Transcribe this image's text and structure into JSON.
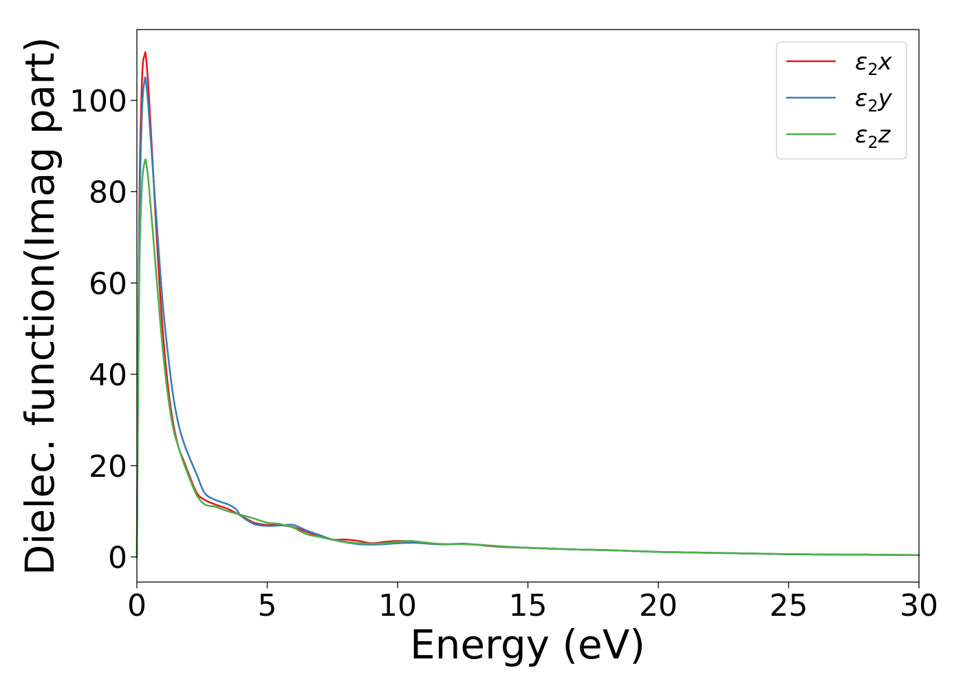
{
  "chart_data": {
    "type": "line",
    "title": "",
    "xlabel": "Energy (eV)",
    "ylabel": "Dielec. function(Imag part)",
    "xlim": [
      0,
      30
    ],
    "ylim": [
      -5.5,
      115.5
    ],
    "xticks": [
      "0",
      "5",
      "10",
      "15",
      "20",
      "25",
      "30"
    ],
    "yticks": [
      "0",
      "20",
      "40",
      "60",
      "80",
      "100"
    ],
    "grid": false,
    "legend_position": "top-right",
    "series": [
      {
        "name": "ε2x",
        "name_base": "ε",
        "name_sub": "2",
        "name_axis": "x",
        "color": "#e41a1c",
        "points": [
          [
            0,
            0
          ],
          [
            0.05,
            45
          ],
          [
            0.1,
            80
          ],
          [
            0.2,
            105
          ],
          [
            0.3,
            110
          ],
          [
            0.35,
            109.5
          ],
          [
            0.45,
            102
          ],
          [
            0.6,
            87
          ],
          [
            0.8,
            66
          ],
          [
            1.0,
            49
          ],
          [
            1.2,
            37
          ],
          [
            1.4,
            29
          ],
          [
            1.6,
            24
          ],
          [
            1.8,
            21
          ],
          [
            2.0,
            18
          ],
          [
            2.3,
            14
          ],
          [
            2.6,
            12.5
          ],
          [
            3.0,
            11.5
          ],
          [
            3.5,
            10.5
          ],
          [
            4.0,
            9.0
          ],
          [
            4.5,
            7.5
          ],
          [
            5.0,
            7.0
          ],
          [
            5.5,
            7.0
          ],
          [
            6.0,
            6.5
          ],
          [
            6.5,
            5.5
          ],
          [
            7.0,
            4.5
          ],
          [
            7.5,
            3.8
          ],
          [
            8.0,
            3.8
          ],
          [
            8.5,
            3.5
          ],
          [
            9.0,
            3.0
          ],
          [
            9.5,
            3.3
          ],
          [
            10.0,
            3.5
          ],
          [
            10.5,
            3.4
          ],
          [
            11.0,
            3.0
          ],
          [
            11.5,
            2.8
          ],
          [
            12.0,
            2.8
          ],
          [
            12.5,
            2.9
          ],
          [
            13.0,
            2.7
          ],
          [
            13.5,
            2.4
          ],
          [
            14.0,
            2.2
          ],
          [
            15.0,
            2.0
          ],
          [
            16.0,
            1.8
          ],
          [
            17.0,
            1.6
          ],
          [
            18.0,
            1.5
          ],
          [
            19.0,
            1.3
          ],
          [
            20.0,
            1.1
          ],
          [
            21.0,
            1.0
          ],
          [
            22.0,
            0.9
          ],
          [
            23.0,
            0.8
          ],
          [
            24.0,
            0.7
          ],
          [
            25.0,
            0.6
          ],
          [
            26.0,
            0.55
          ],
          [
            27.0,
            0.5
          ],
          [
            28.0,
            0.5
          ],
          [
            29.0,
            0.45
          ],
          [
            30.0,
            0.4
          ]
        ]
      },
      {
        "name": "ε2y",
        "name_base": "ε",
        "name_sub": "2",
        "name_axis": "y",
        "color": "#377eb8",
        "points": [
          [
            0,
            0
          ],
          [
            0.05,
            42
          ],
          [
            0.1,
            75
          ],
          [
            0.2,
            98
          ],
          [
            0.3,
            104.5
          ],
          [
            0.35,
            104
          ],
          [
            0.45,
            98
          ],
          [
            0.6,
            86
          ],
          [
            0.8,
            70
          ],
          [
            1.0,
            55
          ],
          [
            1.2,
            44
          ],
          [
            1.4,
            35
          ],
          [
            1.6,
            29
          ],
          [
            1.8,
            25
          ],
          [
            2.0,
            22
          ],
          [
            2.3,
            18
          ],
          [
            2.6,
            14
          ],
          [
            3.0,
            12.5
          ],
          [
            3.5,
            11.5
          ],
          [
            3.8,
            10.5
          ],
          [
            4.0,
            9.0
          ],
          [
            4.5,
            7.2
          ],
          [
            5.0,
            6.8
          ],
          [
            5.5,
            6.9
          ],
          [
            6.0,
            7.0
          ],
          [
            6.5,
            5.8
          ],
          [
            7.0,
            4.8
          ],
          [
            7.5,
            3.8
          ],
          [
            8.0,
            3.2
          ],
          [
            8.5,
            2.8
          ],
          [
            9.0,
            2.7
          ],
          [
            9.5,
            2.8
          ],
          [
            10.0,
            3.0
          ],
          [
            10.5,
            3.1
          ],
          [
            11.0,
            3.0
          ],
          [
            11.5,
            2.8
          ],
          [
            12.0,
            2.8
          ],
          [
            12.5,
            2.8
          ],
          [
            13.0,
            2.7
          ],
          [
            13.5,
            2.5
          ],
          [
            14.0,
            2.3
          ],
          [
            15.0,
            2.0
          ],
          [
            16.0,
            1.8
          ],
          [
            17.0,
            1.6
          ],
          [
            18.0,
            1.5
          ],
          [
            19.0,
            1.3
          ],
          [
            20.0,
            1.1
          ],
          [
            21.0,
            1.0
          ],
          [
            22.0,
            0.9
          ],
          [
            23.0,
            0.8
          ],
          [
            24.0,
            0.7
          ],
          [
            25.0,
            0.6
          ],
          [
            26.0,
            0.55
          ],
          [
            27.0,
            0.5
          ],
          [
            28.0,
            0.5
          ],
          [
            29.0,
            0.45
          ],
          [
            30.0,
            0.4
          ]
        ]
      },
      {
        "name": "ε2z",
        "name_base": "ε",
        "name_sub": "2",
        "name_axis": "z",
        "color": "#4daf4a",
        "points": [
          [
            0,
            0
          ],
          [
            0.05,
            38
          ],
          [
            0.1,
            65
          ],
          [
            0.2,
            82
          ],
          [
            0.3,
            86.5
          ],
          [
            0.35,
            86.5
          ],
          [
            0.45,
            82
          ],
          [
            0.6,
            72
          ],
          [
            0.8,
            58
          ],
          [
            1.0,
            45
          ],
          [
            1.2,
            35
          ],
          [
            1.4,
            28
          ],
          [
            1.6,
            24
          ],
          [
            1.8,
            20.5
          ],
          [
            2.0,
            17.5
          ],
          [
            2.3,
            13.5
          ],
          [
            2.6,
            11.5
          ],
          [
            3.0,
            11.0
          ],
          [
            3.5,
            10.0
          ],
          [
            4.0,
            9.2
          ],
          [
            4.5,
            8.4
          ],
          [
            5.0,
            7.5
          ],
          [
            5.5,
            7.2
          ],
          [
            6.0,
            6.4
          ],
          [
            6.5,
            5.0
          ],
          [
            7.0,
            4.4
          ],
          [
            7.5,
            3.8
          ],
          [
            8.0,
            3.3
          ],
          [
            8.5,
            3.0
          ],
          [
            9.0,
            2.9
          ],
          [
            9.5,
            3.0
          ],
          [
            10.0,
            3.3
          ],
          [
            10.5,
            3.5
          ],
          [
            11.0,
            3.2
          ],
          [
            11.5,
            2.9
          ],
          [
            12.0,
            2.8
          ],
          [
            12.5,
            2.8
          ],
          [
            13.0,
            2.7
          ],
          [
            13.5,
            2.5
          ],
          [
            14.0,
            2.3
          ],
          [
            15.0,
            2.0
          ],
          [
            16.0,
            1.8
          ],
          [
            17.0,
            1.6
          ],
          [
            18.0,
            1.5
          ],
          [
            19.0,
            1.3
          ],
          [
            20.0,
            1.1
          ],
          [
            21.0,
            1.0
          ],
          [
            22.0,
            0.9
          ],
          [
            23.0,
            0.8
          ],
          [
            24.0,
            0.7
          ],
          [
            25.0,
            0.6
          ],
          [
            26.0,
            0.55
          ],
          [
            27.0,
            0.5
          ],
          [
            28.0,
            0.5
          ],
          [
            29.0,
            0.45
          ],
          [
            30.0,
            0.4
          ]
        ]
      }
    ]
  }
}
